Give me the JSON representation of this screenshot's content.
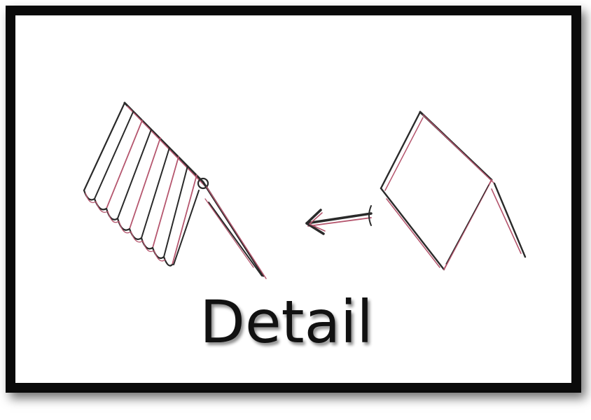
{
  "caption": "Detail",
  "colors": {
    "frame": "#0a0a0a",
    "background": "#ffffff",
    "pencil_dark": "#2a2a2a",
    "pencil_red": "#b5566e"
  },
  "drawings": [
    {
      "name": "pleated-awning-sketch"
    },
    {
      "name": "arrow-left-sketch"
    },
    {
      "name": "flat-awning-sketch"
    }
  ]
}
